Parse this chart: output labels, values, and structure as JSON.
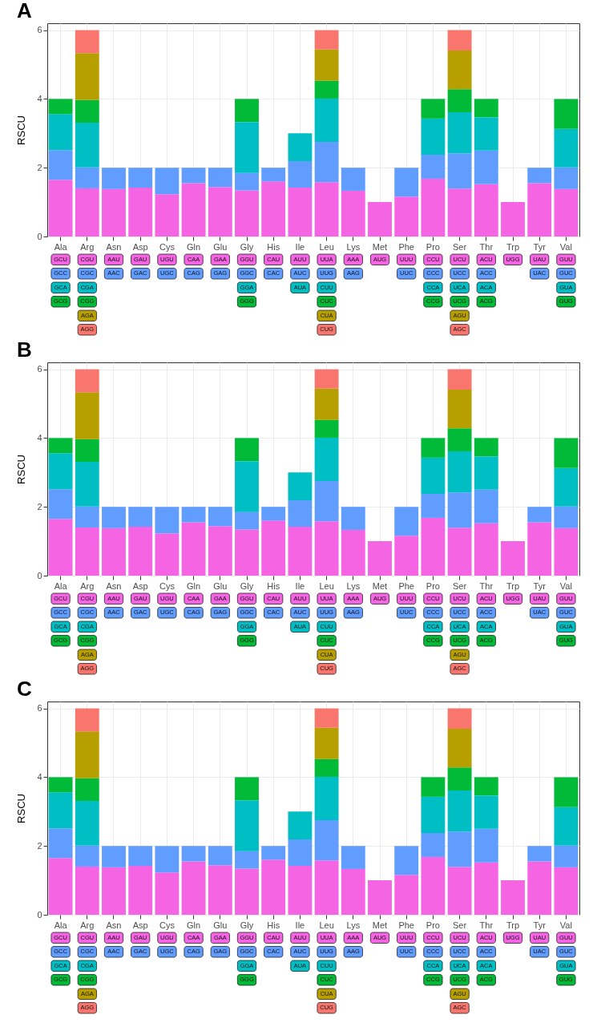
{
  "chart_data": [
    {
      "type": "bar",
      "title": "A",
      "ylabel": "RSCU",
      "stacked": true,
      "grid": true,
      "ylim": [
        0,
        6.2
      ],
      "yticks": [
        0,
        2,
        4,
        6
      ],
      "categories": [
        "Ala",
        "Arg",
        "Asn",
        "Asp",
        "Cys",
        "Gln",
        "Glu",
        "Gly",
        "His",
        "Ile",
        "Leu",
        "Lys",
        "Met",
        "Phe",
        "Pro",
        "Ser",
        "Thr",
        "Trp",
        "Tyr",
        "Val"
      ],
      "series": [
        {
          "color": "#f564e3",
          "values": [
            1.65,
            1.4,
            1.38,
            1.42,
            1.23,
            1.55,
            1.44,
            1.34,
            1.6,
            1.42,
            1.58,
            1.33,
            1,
            1.16,
            1.68,
            1.39,
            1.52,
            1,
            1.55,
            1.38
          ]
        },
        {
          "color": "#619cff",
          "values": [
            0.86,
            0.61,
            0.62,
            0.58,
            0.77,
            0.45,
            0.56,
            0.51,
            0.4,
            0.77,
            1.17,
            0.67,
            null,
            0.84,
            0.7,
            1.03,
            0.98,
            null,
            0.45,
            0.63
          ]
        },
        {
          "color": "#00bfc4",
          "values": [
            1.05,
            1.3,
            null,
            null,
            null,
            null,
            null,
            1.48,
            null,
            0.81,
            1.26,
            null,
            null,
            null,
            1.05,
            1.19,
            0.97,
            null,
            null,
            1.12
          ]
        },
        {
          "color": "#00ba38",
          "values": [
            0.44,
            0.66,
            null,
            null,
            null,
            null,
            null,
            0.67,
            null,
            null,
            0.52,
            null,
            null,
            null,
            0.57,
            0.67,
            0.53,
            null,
            null,
            0.87
          ]
        },
        {
          "color": "#b79f00",
          "values": [
            null,
            1.36,
            null,
            null,
            null,
            null,
            null,
            null,
            null,
            null,
            0.91,
            null,
            null,
            null,
            null,
            1.13,
            null,
            null,
            null,
            null
          ]
        },
        {
          "color": "#f8766d",
          "values": [
            null,
            0.67,
            null,
            null,
            null,
            null,
            null,
            null,
            null,
            null,
            0.56,
            null,
            null,
            null,
            null,
            0.59,
            null,
            null,
            null,
            null
          ]
        }
      ],
      "annotations": [
        "GCU",
        "GCC",
        "GCA",
        "GCG",
        "CGU",
        "CGC",
        "CGA",
        "CGG",
        "AGA",
        "AGG",
        "AAU",
        "AAC",
        "GAU",
        "GAC",
        "UGU",
        "UGC",
        "CAA",
        "CAG",
        "GAA",
        "GAG",
        "GGU",
        "GGC",
        "GGA",
        "GGG",
        "CAU",
        "CAC",
        "AUU",
        "AUC",
        "AUA",
        "UUA",
        "UUG",
        "CUU",
        "CUC",
        "CUA",
        "CUG",
        "AAA",
        "AAG",
        "AUG",
        "UUU",
        "UUC",
        "CCU",
        "CCC",
        "CCA",
        "CCG",
        "UCU",
        "UCC",
        "UCA",
        "UCG",
        "AGU",
        "AGC",
        "ACU",
        "ACC",
        "ACA",
        "ACG",
        "UGG",
        "UAU",
        "UAC",
        "GUU",
        "GUC",
        "GUA",
        "GUG"
      ]
    },
    {
      "type": "bar",
      "title": "B",
      "ylabel": "RSCU",
      "stacked": true,
      "grid": true,
      "ylim": [
        0,
        6.2
      ],
      "yticks": [
        0,
        2,
        4,
        6
      ],
      "categories": [
        "Ala",
        "Arg",
        "Asn",
        "Asp",
        "Cys",
        "Gln",
        "Glu",
        "Gly",
        "His",
        "Ile",
        "Leu",
        "Lys",
        "Met",
        "Phe",
        "Pro",
        "Ser",
        "Thr",
        "Trp",
        "Tyr",
        "Val"
      ],
      "series": [
        {
          "color": "#f564e3",
          "values": [
            1.65,
            1.4,
            1.38,
            1.42,
            1.23,
            1.55,
            1.44,
            1.34,
            1.6,
            1.42,
            1.58,
            1.33,
            1,
            1.16,
            1.68,
            1.39,
            1.52,
            1,
            1.55,
            1.38
          ]
        },
        {
          "color": "#619cff",
          "values": [
            0.86,
            0.61,
            0.62,
            0.58,
            0.77,
            0.45,
            0.56,
            0.51,
            0.4,
            0.77,
            1.17,
            0.67,
            null,
            0.84,
            0.7,
            1.03,
            0.98,
            null,
            0.45,
            0.63
          ]
        },
        {
          "color": "#00bfc4",
          "values": [
            1.05,
            1.3,
            null,
            null,
            null,
            null,
            null,
            1.48,
            null,
            0.81,
            1.26,
            null,
            null,
            null,
            1.05,
            1.19,
            0.97,
            null,
            null,
            1.12
          ]
        },
        {
          "color": "#00ba38",
          "values": [
            0.44,
            0.66,
            null,
            null,
            null,
            null,
            null,
            0.67,
            null,
            null,
            0.52,
            null,
            null,
            null,
            0.57,
            0.67,
            0.53,
            null,
            null,
            0.87
          ]
        },
        {
          "color": "#b79f00",
          "values": [
            null,
            1.36,
            null,
            null,
            null,
            null,
            null,
            null,
            null,
            null,
            0.91,
            null,
            null,
            null,
            null,
            1.13,
            null,
            null,
            null,
            null
          ]
        },
        {
          "color": "#f8766d",
          "values": [
            null,
            0.67,
            null,
            null,
            null,
            null,
            null,
            null,
            null,
            null,
            0.56,
            null,
            null,
            null,
            null,
            0.59,
            null,
            null,
            null,
            null
          ]
        }
      ],
      "annotations": [
        "GCU",
        "GCC",
        "GCA",
        "GCG",
        "CGU",
        "CGC",
        "CGA",
        "CGG",
        "AGA",
        "AGG",
        "AAU",
        "AAC",
        "GAU",
        "GAC",
        "UGU",
        "UGC",
        "CAA",
        "CAG",
        "GAA",
        "GAG",
        "GGU",
        "GGC",
        "GGA",
        "GGG",
        "CAU",
        "CAC",
        "AUU",
        "AUC",
        "AUA",
        "UUA",
        "UUG",
        "CUU",
        "CUC",
        "CUA",
        "CUG",
        "AAA",
        "AAG",
        "AUG",
        "UUU",
        "UUC",
        "CCU",
        "CCC",
        "CCA",
        "CCG",
        "UCU",
        "UCC",
        "UCA",
        "UCG",
        "AGU",
        "AGC",
        "ACU",
        "ACC",
        "ACA",
        "ACG",
        "UGG",
        "UAU",
        "UAC",
        "GUU",
        "GUC",
        "GUA",
        "GUG"
      ]
    },
    {
      "type": "bar",
      "title": "C",
      "ylabel": "RSCU",
      "stacked": true,
      "grid": true,
      "ylim": [
        0,
        6.2
      ],
      "yticks": [
        0,
        2,
        4,
        6
      ],
      "categories": [
        "Ala",
        "Arg",
        "Asn",
        "Asp",
        "Cys",
        "Gln",
        "Glu",
        "Gly",
        "His",
        "Ile",
        "Leu",
        "Lys",
        "Met",
        "Phe",
        "Pro",
        "Ser",
        "Thr",
        "Trp",
        "Tyr",
        "Val"
      ],
      "series": [
        {
          "color": "#f564e3",
          "values": [
            1.65,
            1.4,
            1.38,
            1.42,
            1.23,
            1.55,
            1.44,
            1.34,
            1.6,
            1.42,
            1.58,
            1.33,
            1,
            1.16,
            1.68,
            1.39,
            1.52,
            1,
            1.55,
            1.38
          ]
        },
        {
          "color": "#619cff",
          "values": [
            0.86,
            0.61,
            0.62,
            0.58,
            0.77,
            0.45,
            0.56,
            0.51,
            0.4,
            0.77,
            1.17,
            0.67,
            null,
            0.84,
            0.7,
            1.03,
            0.98,
            null,
            0.45,
            0.63
          ]
        },
        {
          "color": "#00bfc4",
          "values": [
            1.05,
            1.3,
            null,
            null,
            null,
            null,
            null,
            1.48,
            null,
            0.81,
            1.26,
            null,
            null,
            null,
            1.05,
            1.19,
            0.97,
            null,
            null,
            1.12
          ]
        },
        {
          "color": "#00ba38",
          "values": [
            0.44,
            0.66,
            null,
            null,
            null,
            null,
            null,
            0.67,
            null,
            null,
            0.52,
            null,
            null,
            null,
            0.57,
            0.67,
            0.53,
            null,
            null,
            0.87
          ]
        },
        {
          "color": "#b79f00",
          "values": [
            null,
            1.36,
            null,
            null,
            null,
            null,
            null,
            null,
            null,
            null,
            0.91,
            null,
            null,
            null,
            null,
            1.13,
            null,
            null,
            null,
            null
          ]
        },
        {
          "color": "#f8766d",
          "values": [
            null,
            0.67,
            null,
            null,
            null,
            null,
            null,
            null,
            null,
            null,
            0.56,
            null,
            null,
            null,
            null,
            0.59,
            null,
            null,
            null,
            null
          ]
        }
      ],
      "annotations": [
        "GCU",
        "GCC",
        "GCA",
        "GCG",
        "CGU",
        "CGC",
        "CGA",
        "CGG",
        "AGA",
        "AGG",
        "AAU",
        "AAC",
        "GAU",
        "GAC",
        "UGU",
        "UGC",
        "CAA",
        "CAG",
        "GAA",
        "GAG",
        "GGU",
        "GGC",
        "GGA",
        "GGG",
        "CAU",
        "CAC",
        "AUU",
        "AUC",
        "AUA",
        "UUA",
        "UUG",
        "CUU",
        "CUC",
        "CUA",
        "CUG",
        "AAA",
        "AAG",
        "AUG",
        "UUU",
        "UUC",
        "CCU",
        "CCC",
        "CCA",
        "CCG",
        "UCU",
        "UCC",
        "UCA",
        "UCG",
        "AGU",
        "AGC",
        "ACU",
        "ACC",
        "ACA",
        "ACG",
        "UGG",
        "UAU",
        "UAC",
        "GUU",
        "GUC",
        "GUA",
        "GUG"
      ]
    }
  ]
}
